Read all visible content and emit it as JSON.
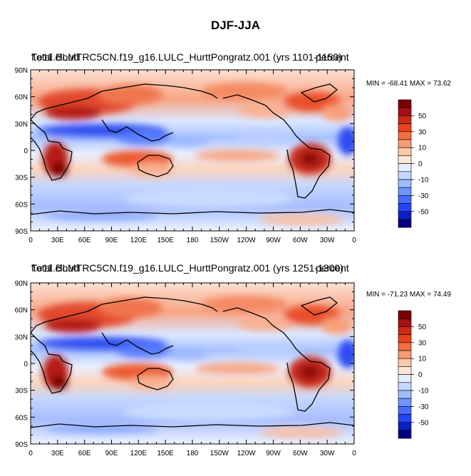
{
  "figure": {
    "title": "DJF-JJA"
  },
  "x_tick_labels": [
    "0",
    "30E",
    "60E",
    "90E",
    "120E",
    "150E",
    "180",
    "150W",
    "120W",
    "90W",
    "60W",
    "30W",
    "0"
  ],
  "y_tick_labels": [
    "90N",
    "60N",
    "30N",
    "0",
    "30S",
    "60S",
    "90S"
  ],
  "colorbar": {
    "tick_labels": [
      "50",
      "30",
      "10",
      "0",
      "-10",
      "-30",
      "-50"
    ],
    "colors": [
      "#7a0000",
      "#a50f15",
      "#cb2a16",
      "#e8421d",
      "#f46d43",
      "#f89c74",
      "#fcc9a8",
      "#fee6d8",
      "#e4eeff",
      "#c2d8ff",
      "#9ebcff",
      "#7094ff",
      "#4a6bff",
      "#2544f5",
      "#0b1fc4",
      "#000080"
    ]
  },
  "panels": [
    {
      "left_title": "Total cloud",
      "main_title": "f.e11.BLMTRC5CN.f19_g16.LULC_HurttPongratz.001 (yrs 1101-1150)",
      "right_title": "percent",
      "min_label": "MIN = -68.41",
      "max_label": "MAX = 73.62"
    },
    {
      "left_title": "Total cloud",
      "main_title": "f.e11.BLMTRC5CN.f19_g16.LULC_HurttPongratz.001 (yrs 1251-1300)",
      "right_title": "percent",
      "min_label": "MIN = -71.23",
      "max_label": "MAX = 74.49"
    }
  ]
}
